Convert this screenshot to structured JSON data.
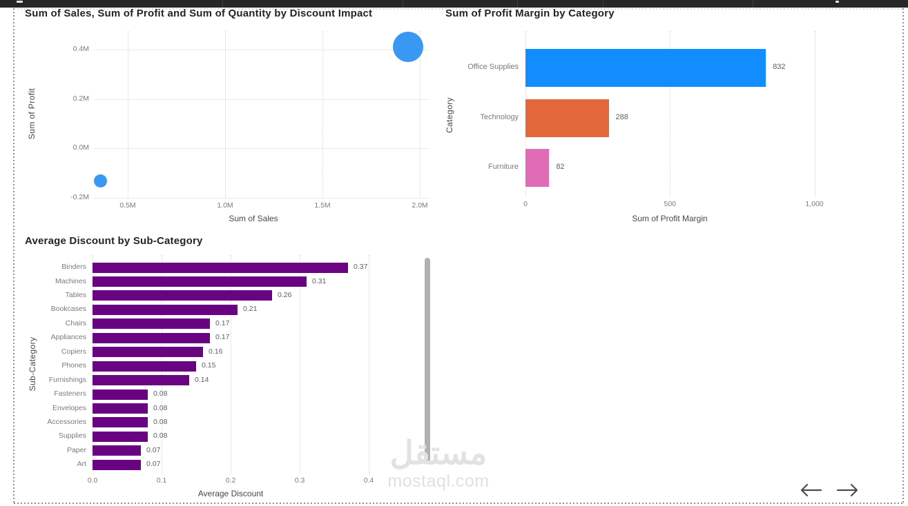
{
  "watermark": {
    "logo": "مستقل",
    "site": "mostaql.com"
  },
  "chart_data": [
    {
      "type": "scatter",
      "title": "Sum of Sales, Sum of Profit and Sum of Quantity by Discount Impact",
      "xlabel": "Sum of Sales",
      "ylabel": "Sum of Profit",
      "x_tick_labels": [
        "0.5M",
        "1.0M",
        "1.5M",
        "2.0M"
      ],
      "x_tick_values": [
        500000,
        1000000,
        1500000,
        2000000
      ],
      "y_tick_labels": [
        "0.4M",
        "0.2M",
        "0.0M",
        "-0.2M"
      ],
      "y_tick_values": [
        400000,
        200000,
        0,
        -200000
      ],
      "xlim": [
        330000,
        2040000
      ],
      "ylim": [
        -200000,
        475000
      ],
      "grid": "dotted",
      "point_color": "#3999F2",
      "size_field": "Sum of Quantity",
      "points": [
        {
          "sales": 1940000,
          "profit": 410000,
          "bubble_size": "large"
        },
        {
          "sales": 360000,
          "profit": -130000,
          "bubble_size": "small"
        }
      ]
    },
    {
      "type": "bar",
      "orientation": "horizontal",
      "title": "Sum of Profit Margin by Category",
      "xlabel": "Sum of Profit Margin",
      "ylabel": "Category",
      "categories": [
        "Office Supplies",
        "Technology",
        "Furniture"
      ],
      "values": [
        832,
        288,
        82
      ],
      "data_labels": [
        "832",
        "288",
        "82"
      ],
      "bar_colors": [
        "#118DFF",
        "#E2683A",
        "#E06CB8"
      ],
      "x_tick_labels": [
        "0",
        "500",
        "1,000"
      ],
      "x_tick_values": [
        0,
        500,
        1000
      ],
      "xlim": [
        0,
        1030
      ],
      "grid": "dotted"
    },
    {
      "type": "bar",
      "orientation": "horizontal",
      "title": "Average Discount by Sub-Category",
      "xlabel": "Average Discount",
      "ylabel": "Sub-Category",
      "categories": [
        "Binders",
        "Machines",
        "Tables",
        "Bookcases",
        "Chairs",
        "Appliances",
        "Copiers",
        "Phones",
        "Furnishings",
        "Fasteners",
        "Envelopes",
        "Accessories",
        "Supplies",
        "Paper",
        "Art"
      ],
      "values": [
        0.37,
        0.31,
        0.26,
        0.21,
        0.17,
        0.17,
        0.16,
        0.15,
        0.14,
        0.08,
        0.08,
        0.08,
        0.08,
        0.07,
        0.07
      ],
      "data_labels": [
        "0.37",
        "0.31",
        "0.26",
        "0.21",
        "0.17",
        "0.17",
        "0.16",
        "0.15",
        "0.14",
        "0.08",
        "0.08",
        "0.08",
        "0.08",
        "0.07",
        "0.07"
      ],
      "bar_color": "#690382",
      "x_tick_labels": [
        "0.0",
        "0.1",
        "0.2",
        "0.3",
        "0.4"
      ],
      "x_tick_values": [
        0,
        0.1,
        0.2,
        0.3,
        0.4
      ],
      "xlim": [
        0,
        0.41
      ],
      "grid": "dotted"
    }
  ]
}
